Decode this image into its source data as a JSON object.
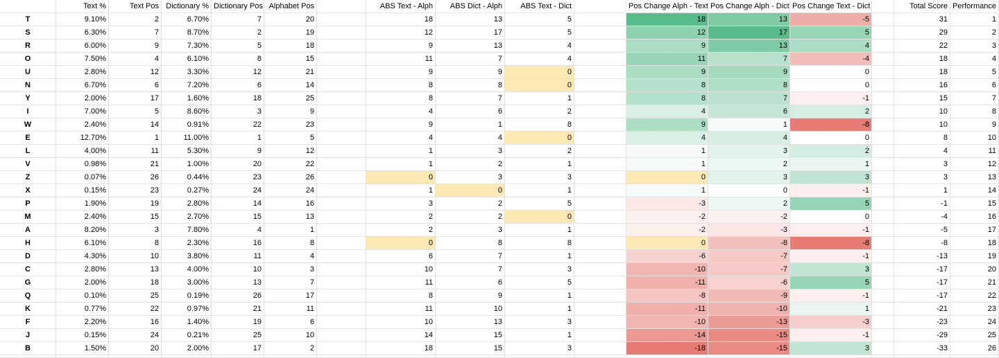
{
  "headers": [
    "",
    "Text %",
    "Text Pos",
    "Dictionary %",
    "Dictionary Pos",
    "Alphabet Pos",
    "",
    "ABS Text - Alph",
    "ABS Dict - Alph",
    "ABS Text - Dict",
    "",
    "Pos Change Alph - Text",
    "Pos Change Alph - Dict",
    "Pos Change Text - Dict",
    "",
    "Total Score",
    "Performance Pos"
  ],
  "rows": [
    {
      "letter": "T",
      "text_pct": "9.10%",
      "text_pos": "2",
      "dict_pct": "6.70%",
      "dict_pos": "7",
      "alpha_pos": "20",
      "abs_ta": "18",
      "abs_da": "13",
      "abs_td": "5",
      "pc_at": "18",
      "pc_ad": "13",
      "pc_td": "-5",
      "score": "31",
      "perf": "1"
    },
    {
      "letter": "S",
      "text_pct": "6.30%",
      "text_pos": "7",
      "dict_pct": "8.70%",
      "dict_pos": "2",
      "alpha_pos": "19",
      "abs_ta": "12",
      "abs_da": "17",
      "abs_td": "5",
      "pc_at": "12",
      "pc_ad": "17",
      "pc_td": "5",
      "score": "29",
      "perf": "2"
    },
    {
      "letter": "R",
      "text_pct": "6.00%",
      "text_pos": "9",
      "dict_pct": "7.30%",
      "dict_pos": "5",
      "alpha_pos": "18",
      "abs_ta": "9",
      "abs_da": "13",
      "abs_td": "4",
      "pc_at": "9",
      "pc_ad": "13",
      "pc_td": "4",
      "score": "22",
      "perf": "3"
    },
    {
      "letter": "O",
      "text_pct": "7.50%",
      "text_pos": "4",
      "dict_pct": "6.10%",
      "dict_pos": "8",
      "alpha_pos": "15",
      "abs_ta": "11",
      "abs_da": "7",
      "abs_td": "4",
      "pc_at": "11",
      "pc_ad": "7",
      "pc_td": "-4",
      "score": "18",
      "perf": "4"
    },
    {
      "letter": "U",
      "text_pct": "2.80%",
      "text_pos": "12",
      "dict_pct": "3.30%",
      "dict_pos": "12",
      "alpha_pos": "21",
      "abs_ta": "9",
      "abs_da": "9",
      "abs_td": "0",
      "pc_at": "9",
      "pc_ad": "9",
      "pc_td": "0",
      "score": "18",
      "perf": "5"
    },
    {
      "letter": "N",
      "text_pct": "6.70%",
      "text_pos": "6",
      "dict_pct": "7.20%",
      "dict_pos": "6",
      "alpha_pos": "14",
      "abs_ta": "8",
      "abs_da": "8",
      "abs_td": "0",
      "pc_at": "8",
      "pc_ad": "8",
      "pc_td": "0",
      "score": "16",
      "perf": "6"
    },
    {
      "letter": "Y",
      "text_pct": "2.00%",
      "text_pos": "17",
      "dict_pct": "1.60%",
      "dict_pos": "18",
      "alpha_pos": "25",
      "abs_ta": "8",
      "abs_da": "7",
      "abs_td": "1",
      "pc_at": "8",
      "pc_ad": "7",
      "pc_td": "-1",
      "score": "15",
      "perf": "7"
    },
    {
      "letter": "I",
      "text_pct": "7.00%",
      "text_pos": "5",
      "dict_pct": "8.60%",
      "dict_pos": "3",
      "alpha_pos": "9",
      "abs_ta": "4",
      "abs_da": "6",
      "abs_td": "2",
      "pc_at": "4",
      "pc_ad": "6",
      "pc_td": "2",
      "score": "10",
      "perf": "8"
    },
    {
      "letter": "W",
      "text_pct": "2.40%",
      "text_pos": "14",
      "dict_pct": "0.91%",
      "dict_pos": "22",
      "alpha_pos": "23",
      "abs_ta": "9",
      "abs_da": "1",
      "abs_td": "8",
      "pc_at": "9",
      "pc_ad": "1",
      "pc_td": "-8",
      "score": "10",
      "perf": "9"
    },
    {
      "letter": "E",
      "text_pct": "12.70%",
      "text_pos": "1",
      "dict_pct": "11.00%",
      "dict_pos": "1",
      "alpha_pos": "5",
      "abs_ta": "4",
      "abs_da": "4",
      "abs_td": "0",
      "pc_at": "4",
      "pc_ad": "4",
      "pc_td": "0",
      "score": "8",
      "perf": "10"
    },
    {
      "letter": "L",
      "text_pct": "4.00%",
      "text_pos": "11",
      "dict_pct": "5.30%",
      "dict_pos": "9",
      "alpha_pos": "12",
      "abs_ta": "1",
      "abs_da": "3",
      "abs_td": "2",
      "pc_at": "1",
      "pc_ad": "3",
      "pc_td": "2",
      "score": "4",
      "perf": "11"
    },
    {
      "letter": "V",
      "text_pct": "0.98%",
      "text_pos": "21",
      "dict_pct": "1.00%",
      "dict_pos": "20",
      "alpha_pos": "22",
      "abs_ta": "1",
      "abs_da": "2",
      "abs_td": "1",
      "pc_at": "1",
      "pc_ad": "2",
      "pc_td": "1",
      "score": "3",
      "perf": "12"
    },
    {
      "letter": "Z",
      "text_pct": "0.07%",
      "text_pos": "26",
      "dict_pct": "0.44%",
      "dict_pos": "23",
      "alpha_pos": "26",
      "abs_ta": "0",
      "abs_da": "3",
      "abs_td": "3",
      "pc_at": "0",
      "pc_ad": "3",
      "pc_td": "3",
      "score": "3",
      "perf": "13"
    },
    {
      "letter": "X",
      "text_pct": "0.15%",
      "text_pos": "23",
      "dict_pct": "0.27%",
      "dict_pos": "24",
      "alpha_pos": "24",
      "abs_ta": "1",
      "abs_da": "0",
      "abs_td": "1",
      "pc_at": "1",
      "pc_ad": "0",
      "pc_td": "-1",
      "score": "1",
      "perf": "14"
    },
    {
      "letter": "P",
      "text_pct": "1.90%",
      "text_pos": "19",
      "dict_pct": "2.80%",
      "dict_pos": "14",
      "alpha_pos": "16",
      "abs_ta": "3",
      "abs_da": "2",
      "abs_td": "5",
      "pc_at": "-3",
      "pc_ad": "2",
      "pc_td": "5",
      "score": "-1",
      "perf": "15"
    },
    {
      "letter": "M",
      "text_pct": "2.40%",
      "text_pos": "15",
      "dict_pct": "2.70%",
      "dict_pos": "15",
      "alpha_pos": "13",
      "abs_ta": "2",
      "abs_da": "2",
      "abs_td": "0",
      "pc_at": "-2",
      "pc_ad": "-2",
      "pc_td": "0",
      "score": "-4",
      "perf": "16"
    },
    {
      "letter": "A",
      "text_pct": "8.20%",
      "text_pos": "3",
      "dict_pct": "7.80%",
      "dict_pos": "4",
      "alpha_pos": "1",
      "abs_ta": "2",
      "abs_da": "3",
      "abs_td": "1",
      "pc_at": "-2",
      "pc_ad": "-3",
      "pc_td": "-1",
      "score": "-5",
      "perf": "17"
    },
    {
      "letter": "H",
      "text_pct": "6.10%",
      "text_pos": "8",
      "dict_pct": "2.30%",
      "dict_pos": "16",
      "alpha_pos": "8",
      "abs_ta": "0",
      "abs_da": "8",
      "abs_td": "8",
      "pc_at": "0",
      "pc_ad": "-8",
      "pc_td": "-8",
      "score": "-8",
      "perf": "18"
    },
    {
      "letter": "D",
      "text_pct": "4.30%",
      "text_pos": "10",
      "dict_pct": "3.80%",
      "dict_pos": "11",
      "alpha_pos": "4",
      "abs_ta": "6",
      "abs_da": "7",
      "abs_td": "1",
      "pc_at": "-6",
      "pc_ad": "-7",
      "pc_td": "-1",
      "score": "-13",
      "perf": "19"
    },
    {
      "letter": "C",
      "text_pct": "2.80%",
      "text_pos": "13",
      "dict_pct": "4.00%",
      "dict_pos": "10",
      "alpha_pos": "3",
      "abs_ta": "10",
      "abs_da": "7",
      "abs_td": "3",
      "pc_at": "-10",
      "pc_ad": "-7",
      "pc_td": "3",
      "score": "-17",
      "perf": "20"
    },
    {
      "letter": "G",
      "text_pct": "2.00%",
      "text_pos": "18",
      "dict_pct": "3.00%",
      "dict_pos": "13",
      "alpha_pos": "7",
      "abs_ta": "11",
      "abs_da": "6",
      "abs_td": "5",
      "pc_at": "-11",
      "pc_ad": "-6",
      "pc_td": "5",
      "score": "-17",
      "perf": "21"
    },
    {
      "letter": "Q",
      "text_pct": "0.10%",
      "text_pos": "25",
      "dict_pct": "0.19%",
      "dict_pos": "26",
      "alpha_pos": "17",
      "abs_ta": "8",
      "abs_da": "9",
      "abs_td": "1",
      "pc_at": "-8",
      "pc_ad": "-9",
      "pc_td": "-1",
      "score": "-17",
      "perf": "22"
    },
    {
      "letter": "K",
      "text_pct": "0.77%",
      "text_pos": "22",
      "dict_pct": "0.97%",
      "dict_pos": "21",
      "alpha_pos": "11",
      "abs_ta": "11",
      "abs_da": "10",
      "abs_td": "1",
      "pc_at": "-11",
      "pc_ad": "-10",
      "pc_td": "1",
      "score": "-21",
      "perf": "23"
    },
    {
      "letter": "F",
      "text_pct": "2.20%",
      "text_pos": "16",
      "dict_pct": "1.40%",
      "dict_pos": "19",
      "alpha_pos": "6",
      "abs_ta": "10",
      "abs_da": "13",
      "abs_td": "3",
      "pc_at": "-10",
      "pc_ad": "-13",
      "pc_td": "-3",
      "score": "-23",
      "perf": "24"
    },
    {
      "letter": "J",
      "text_pct": "0.15%",
      "text_pos": "24",
      "dict_pct": "0.21%",
      "dict_pos": "25",
      "alpha_pos": "10",
      "abs_ta": "14",
      "abs_da": "15",
      "abs_td": "1",
      "pc_at": "-14",
      "pc_ad": "-15",
      "pc_td": "-1",
      "score": "-29",
      "perf": "25"
    },
    {
      "letter": "B",
      "text_pct": "1.50%",
      "text_pos": "20",
      "dict_pct": "2.00%",
      "dict_pos": "17",
      "alpha_pos": "2",
      "abs_ta": "18",
      "abs_da": "15",
      "abs_td": "3",
      "pc_at": "-18",
      "pc_ad": "-15",
      "pc_td": "3",
      "score": "-33",
      "perf": "26"
    }
  ],
  "colors": {
    "zero_highlight": "#fce8b2",
    "positive_max": "#57bb8a",
    "negative_max": "#e67c73",
    "neutral": "#ffffff",
    "gridline": "#e2e2e2"
  }
}
